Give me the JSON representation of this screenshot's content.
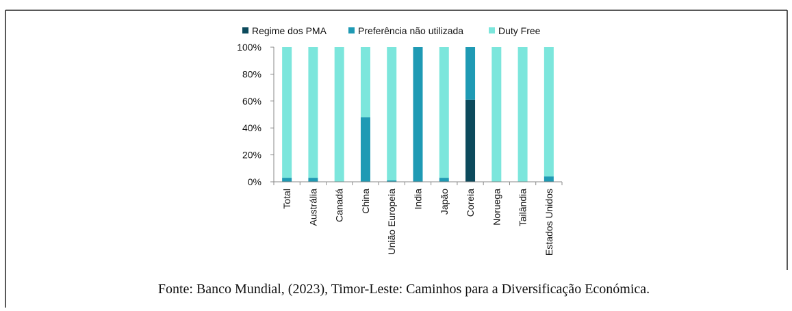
{
  "chart_data": {
    "type": "bar",
    "stacked": true,
    "categories": [
      "Total",
      "Austrália",
      "Canadá",
      "China",
      "União Europeia",
      "India",
      "Japão",
      "Coreia",
      "Noruega",
      "Tailândia",
      "Estados Unidos"
    ],
    "series": [
      {
        "name": "Regime dos PMA",
        "color": "#0c4a5c",
        "values": [
          0,
          0,
          0,
          0,
          0,
          0,
          0,
          61,
          0,
          0,
          0
        ]
      },
      {
        "name": "Preferência não utilizada",
        "color": "#1f9ab4",
        "values": [
          3,
          3,
          0,
          48,
          1,
          100,
          3,
          39,
          0,
          0,
          4
        ]
      },
      {
        "name": "Duty Free",
        "color": "#7ce6dc",
        "values": [
          97,
          97,
          100,
          52,
          99,
          0,
          97,
          0,
          100,
          100,
          96
        ]
      }
    ],
    "ylim": [
      0,
      100
    ],
    "yticks": [
      {
        "value": 0,
        "label": "0%"
      },
      {
        "value": 20,
        "label": "20%"
      },
      {
        "value": 40,
        "label": "40%"
      },
      {
        "value": 60,
        "label": "60%"
      },
      {
        "value": 80,
        "label": "80%"
      },
      {
        "value": 100,
        "label": "100%"
      }
    ],
    "legend": "top",
    "caption": "Fonte: Banco Mundial, (2023), Timor-Leste: Caminhos para a Diversificação Económica."
  }
}
